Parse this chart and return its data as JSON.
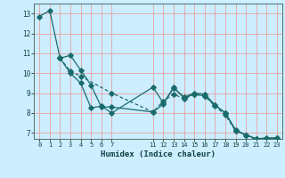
{
  "xlabel": "Humidex (Indice chaleur)",
  "background_color": "#cceeff",
  "grid_color": "#e8a0a0",
  "line_color": "#1a6b6b",
  "xlim": [
    -0.5,
    23.5
  ],
  "ylim": [
    6.7,
    13.5
  ],
  "yticks": [
    7,
    8,
    9,
    10,
    11,
    12,
    13
  ],
  "xticks": [
    0,
    1,
    2,
    3,
    4,
    5,
    6,
    7,
    11,
    12,
    13,
    14,
    15,
    16,
    17,
    18,
    19,
    20,
    21,
    22,
    23
  ],
  "line1_x": [
    0,
    1,
    2,
    3,
    4,
    5,
    6,
    7,
    11,
    12,
    13,
    14,
    15,
    16,
    17,
    18,
    19,
    20,
    21,
    22,
    23
  ],
  "line1_y": [
    12.85,
    13.15,
    10.75,
    10.0,
    9.5,
    8.25,
    8.35,
    8.0,
    9.3,
    8.5,
    9.25,
    8.8,
    9.0,
    8.95,
    8.4,
    8.0,
    7.15,
    6.9,
    6.7,
    6.75,
    6.75
  ],
  "line2_x": [
    2,
    3,
    4,
    5,
    6,
    7,
    11,
    12,
    13,
    14,
    15,
    16,
    17,
    18,
    19,
    20,
    21,
    22,
    23
  ],
  "line2_y": [
    10.75,
    10.9,
    10.15,
    9.4,
    8.3,
    8.3,
    8.05,
    8.45,
    9.3,
    8.75,
    8.95,
    8.85,
    8.4,
    8.0,
    7.1,
    6.9,
    6.7,
    6.7,
    6.75
  ],
  "line3_x": [
    2,
    3,
    4,
    7,
    11,
    12,
    13,
    14,
    15,
    16,
    17,
    18,
    19,
    20,
    21,
    22,
    23
  ],
  "line3_y": [
    10.75,
    10.1,
    9.85,
    9.0,
    8.05,
    8.6,
    8.95,
    8.7,
    8.95,
    8.85,
    8.35,
    7.9,
    7.1,
    6.9,
    6.65,
    6.65,
    6.7
  ]
}
